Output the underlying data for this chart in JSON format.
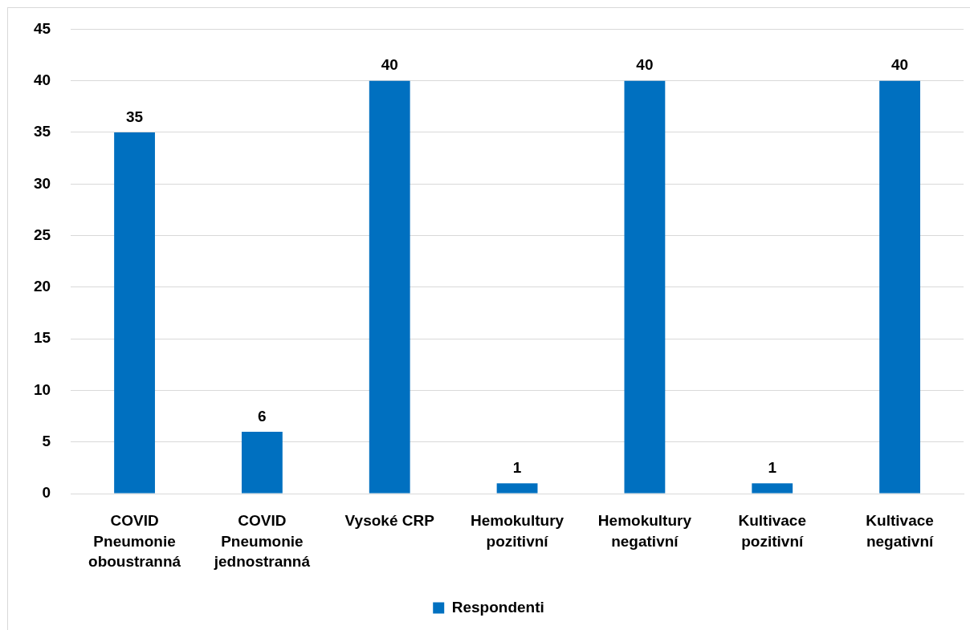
{
  "chart_data": {
    "type": "bar",
    "categories": [
      "COVID Pneumonie oboustranná",
      "COVID Pneumonie jednostranná",
      "Vysoké CRP",
      "Hemokultury pozitivní",
      "Hemokultury negativní",
      "Kultivace pozitivní",
      "Kultivace negativní"
    ],
    "series": [
      {
        "name": "Respondenti",
        "color": "#0070c0",
        "values": [
          35,
          6,
          40,
          1,
          40,
          1,
          40
        ]
      }
    ],
    "ylim": [
      0,
      45
    ],
    "yticks": [
      0,
      5,
      10,
      15,
      20,
      25,
      30,
      35,
      40,
      45
    ],
    "grid": "y",
    "legend": "bottom",
    "data_labels": true
  }
}
